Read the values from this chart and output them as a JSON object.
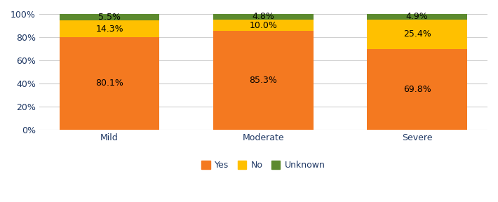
{
  "categories": [
    "Mild",
    "Moderate",
    "Severe"
  ],
  "yes": [
    80.1,
    85.3,
    69.8
  ],
  "no": [
    14.3,
    10.0,
    25.4
  ],
  "unknown": [
    5.5,
    4.8,
    4.9
  ],
  "colors": {
    "yes": "#F47920",
    "no": "#FFC000",
    "unknown": "#5C8A2E"
  },
  "labels": {
    "yes": "Yes",
    "no": "No",
    "unknown": "Unknown"
  },
  "ylim": [
    0,
    100
  ],
  "yticks": [
    0,
    20,
    40,
    60,
    80,
    100
  ],
  "ytick_labels": [
    "0%",
    "20%",
    "40%",
    "60%",
    "80%",
    "100%"
  ],
  "bar_width": 0.65,
  "label_fontsize": 9,
  "tick_fontsize": 9,
  "legend_fontsize": 9,
  "grid_color": "#D0D0D0",
  "background_color": "#FFFFFF",
  "text_color": "#1F3864",
  "legend_text_color": "#1F3864"
}
